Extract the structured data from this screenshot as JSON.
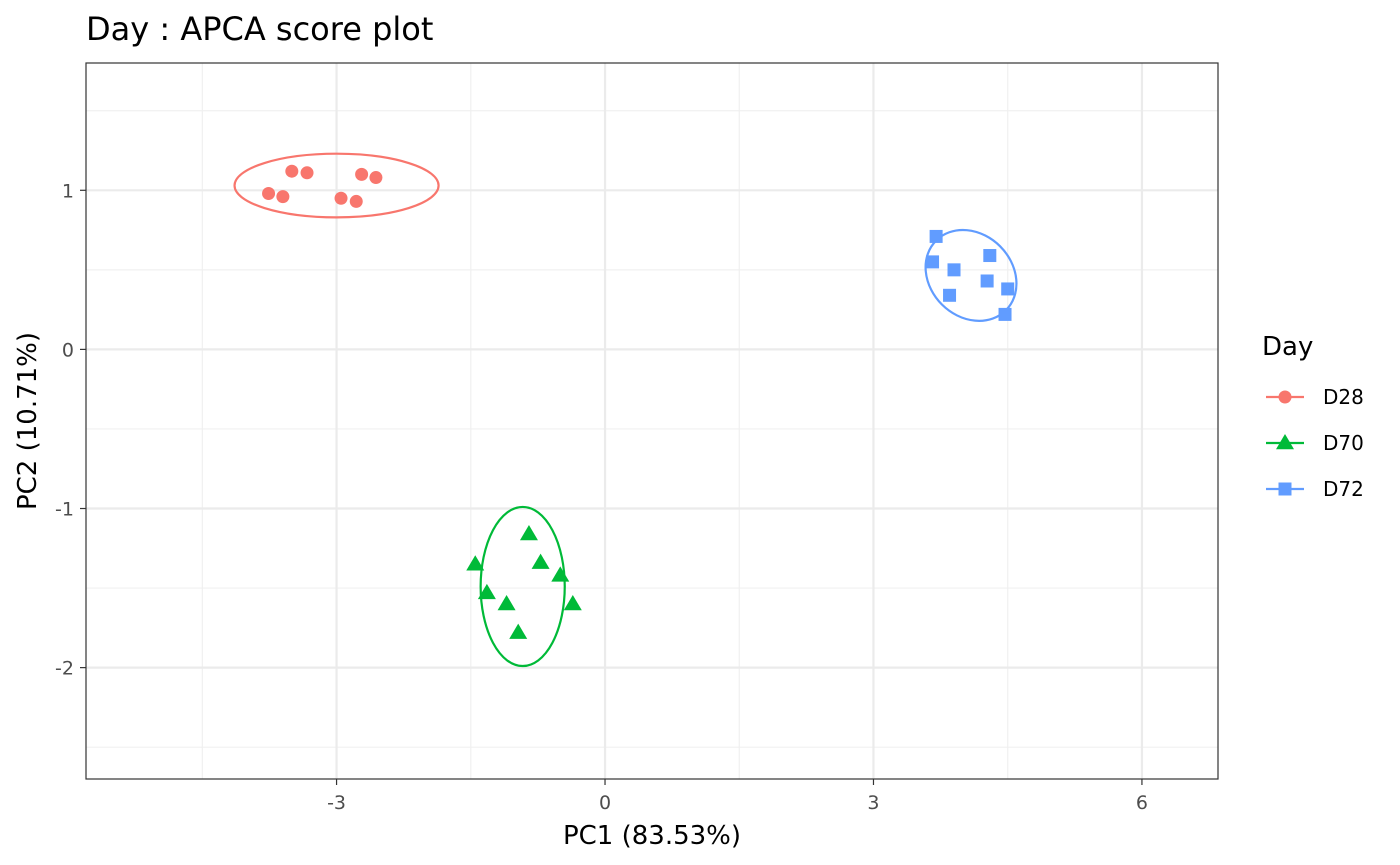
{
  "chart_data": {
    "type": "scatter",
    "title": "Day : APCA score plot",
    "xlabel": "PC1 (83.53%)",
    "ylabel": "PC2 (10.71%)",
    "xlim": [
      -5.8,
      6.85
    ],
    "ylim": [
      -2.7,
      1.8
    ],
    "x_ticks": [
      -3,
      0,
      3,
      6
    ],
    "x_tick_labels": [
      "-3",
      "0",
      "3",
      "6"
    ],
    "y_ticks": [
      -2,
      -1,
      0,
      1
    ],
    "y_tick_labels": [
      "-2",
      "-1",
      "0",
      "1"
    ],
    "grid": true,
    "legend": {
      "title": "Day",
      "position": "right"
    },
    "series": [
      {
        "name": "D28",
        "color": "#F8766D",
        "marker": "circle",
        "points": [
          [
            -3.76,
            0.98
          ],
          [
            -3.6,
            0.96
          ],
          [
            -3.5,
            1.12
          ],
          [
            -3.33,
            1.11
          ],
          [
            -2.95,
            0.95
          ],
          [
            -2.78,
            0.93
          ],
          [
            -2.72,
            1.1
          ],
          [
            -2.56,
            1.08
          ]
        ],
        "ellipse": {
          "cx": -3.0,
          "cy": 1.03,
          "rx": 2.28,
          "ry": 0.2,
          "angle_deg": 0
        }
      },
      {
        "name": "D70",
        "color": "#00BA38",
        "marker": "triangle",
        "points": [
          [
            -1.45,
            -1.35
          ],
          [
            -1.32,
            -1.53
          ],
          [
            -1.1,
            -1.6
          ],
          [
            -0.85,
            -1.16
          ],
          [
            -0.72,
            -1.34
          ],
          [
            -0.5,
            -1.42
          ],
          [
            -0.36,
            -1.6
          ],
          [
            -0.97,
            -1.78
          ]
        ],
        "ellipse": {
          "cx": -0.92,
          "cy": -1.49,
          "rx": 0.94,
          "ry": 0.5,
          "angle_deg": 0
        }
      },
      {
        "name": "D72",
        "color": "#619CFF",
        "marker": "square",
        "points": [
          [
            3.7,
            0.71
          ],
          [
            3.66,
            0.55
          ],
          [
            3.9,
            0.5
          ],
          [
            3.85,
            0.34
          ],
          [
            4.3,
            0.59
          ],
          [
            4.27,
            0.43
          ],
          [
            4.5,
            0.38
          ],
          [
            4.47,
            0.22
          ]
        ],
        "ellipse": {
          "cx": 4.09,
          "cy": 0.465,
          "rx": 0.92,
          "ry": 0.31,
          "angle_deg": 45
        }
      }
    ]
  }
}
